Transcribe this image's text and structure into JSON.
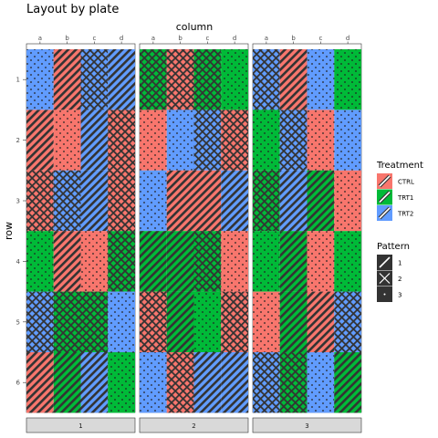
{
  "chart_data": {
    "type": "heatmap",
    "title": "Layout by plate",
    "xlabel": "column",
    "ylabel": "row",
    "x_ticks": [
      "a",
      "b",
      "c",
      "d"
    ],
    "y_ticks": [
      "1",
      "2",
      "3",
      "4",
      "5",
      "6"
    ],
    "facets": [
      "1",
      "2",
      "3"
    ],
    "facet_position": "bottom",
    "x_axis_position": "top",
    "legend_position": "right",
    "fill_legend": {
      "title": "Treatment",
      "entries": [
        {
          "label": "CTRL",
          "color": "#F8766D"
        },
        {
          "label": "TRT1",
          "color": "#00BA38"
        },
        {
          "label": "TRT2",
          "color": "#619CFF"
        }
      ]
    },
    "pattern_legend": {
      "title": "Pattern",
      "entries": [
        {
          "label": "1",
          "pattern": "stripe"
        },
        {
          "label": "2",
          "pattern": "crosshatch"
        },
        {
          "label": "3",
          "pattern": "dots"
        }
      ]
    },
    "cells": [
      [
        [
          [
            "TRT2",
            "3"
          ],
          [
            "CTRL",
            "1"
          ],
          [
            "TRT2",
            "2"
          ],
          [
            "TRT2",
            "1"
          ]
        ],
        [
          [
            "CTRL",
            "1"
          ],
          [
            "CTRL",
            "3"
          ],
          [
            "TRT2",
            "1"
          ],
          [
            "CTRL",
            "2"
          ]
        ],
        [
          [
            "CTRL",
            "2"
          ],
          [
            "TRT2",
            "2"
          ],
          [
            "TRT2",
            "1"
          ],
          [
            "CTRL",
            "2"
          ]
        ],
        [
          [
            "TRT1",
            "3"
          ],
          [
            "CTRL",
            "1"
          ],
          [
            "CTRL",
            "3"
          ],
          [
            "TRT1",
            "2"
          ]
        ],
        [
          [
            "TRT2",
            "2"
          ],
          [
            "TRT1",
            "2"
          ],
          [
            "TRT1",
            "2"
          ],
          [
            "TRT2",
            "3"
          ]
        ],
        [
          [
            "CTRL",
            "1"
          ],
          [
            "TRT1",
            "1"
          ],
          [
            "TRT2",
            "1"
          ],
          [
            "TRT1",
            "3"
          ]
        ]
      ],
      [
        [
          [
            "TRT1",
            "2"
          ],
          [
            "CTRL",
            "2"
          ],
          [
            "TRT1",
            "2"
          ],
          [
            "TRT1",
            "3"
          ]
        ],
        [
          [
            "CTRL",
            "3"
          ],
          [
            "TRT2",
            "3"
          ],
          [
            "TRT2",
            "2"
          ],
          [
            "CTRL",
            "2"
          ]
        ],
        [
          [
            "TRT2",
            "3"
          ],
          [
            "CTRL",
            "1"
          ],
          [
            "CTRL",
            "1"
          ],
          [
            "TRT2",
            "1"
          ]
        ],
        [
          [
            "TRT1",
            "1"
          ],
          [
            "TRT1",
            "1"
          ],
          [
            "TRT1",
            "2"
          ],
          [
            "CTRL",
            "3"
          ]
        ],
        [
          [
            "CTRL",
            "2"
          ],
          [
            "TRT1",
            "1"
          ],
          [
            "TRT1",
            "3"
          ],
          [
            "CTRL",
            "2"
          ]
        ],
        [
          [
            "TRT2",
            "3"
          ],
          [
            "CTRL",
            "2"
          ],
          [
            "TRT2",
            "1"
          ],
          [
            "TRT2",
            "1"
          ]
        ]
      ],
      [
        [
          [
            "TRT2",
            "2"
          ],
          [
            "CTRL",
            "1"
          ],
          [
            "TRT2",
            "3"
          ],
          [
            "TRT1",
            "3"
          ]
        ],
        [
          [
            "TRT1",
            "3"
          ],
          [
            "TRT2",
            "2"
          ],
          [
            "CTRL",
            "3"
          ],
          [
            "TRT2",
            "3"
          ]
        ],
        [
          [
            "TRT1",
            "2"
          ],
          [
            "TRT2",
            "1"
          ],
          [
            "TRT1",
            "1"
          ],
          [
            "CTRL",
            "3"
          ]
        ],
        [
          [
            "TRT1",
            "3"
          ],
          [
            "TRT1",
            "1"
          ],
          [
            "CTRL",
            "3"
          ],
          [
            "TRT1",
            "3"
          ]
        ],
        [
          [
            "CTRL",
            "3"
          ],
          [
            "TRT1",
            "1"
          ],
          [
            "CTRL",
            "1"
          ],
          [
            "TRT2",
            "2"
          ]
        ],
        [
          [
            "TRT2",
            "2"
          ],
          [
            "TRT1",
            "2"
          ],
          [
            "TRT2",
            "3"
          ],
          [
            "TRT1",
            "1"
          ]
        ]
      ]
    ]
  }
}
